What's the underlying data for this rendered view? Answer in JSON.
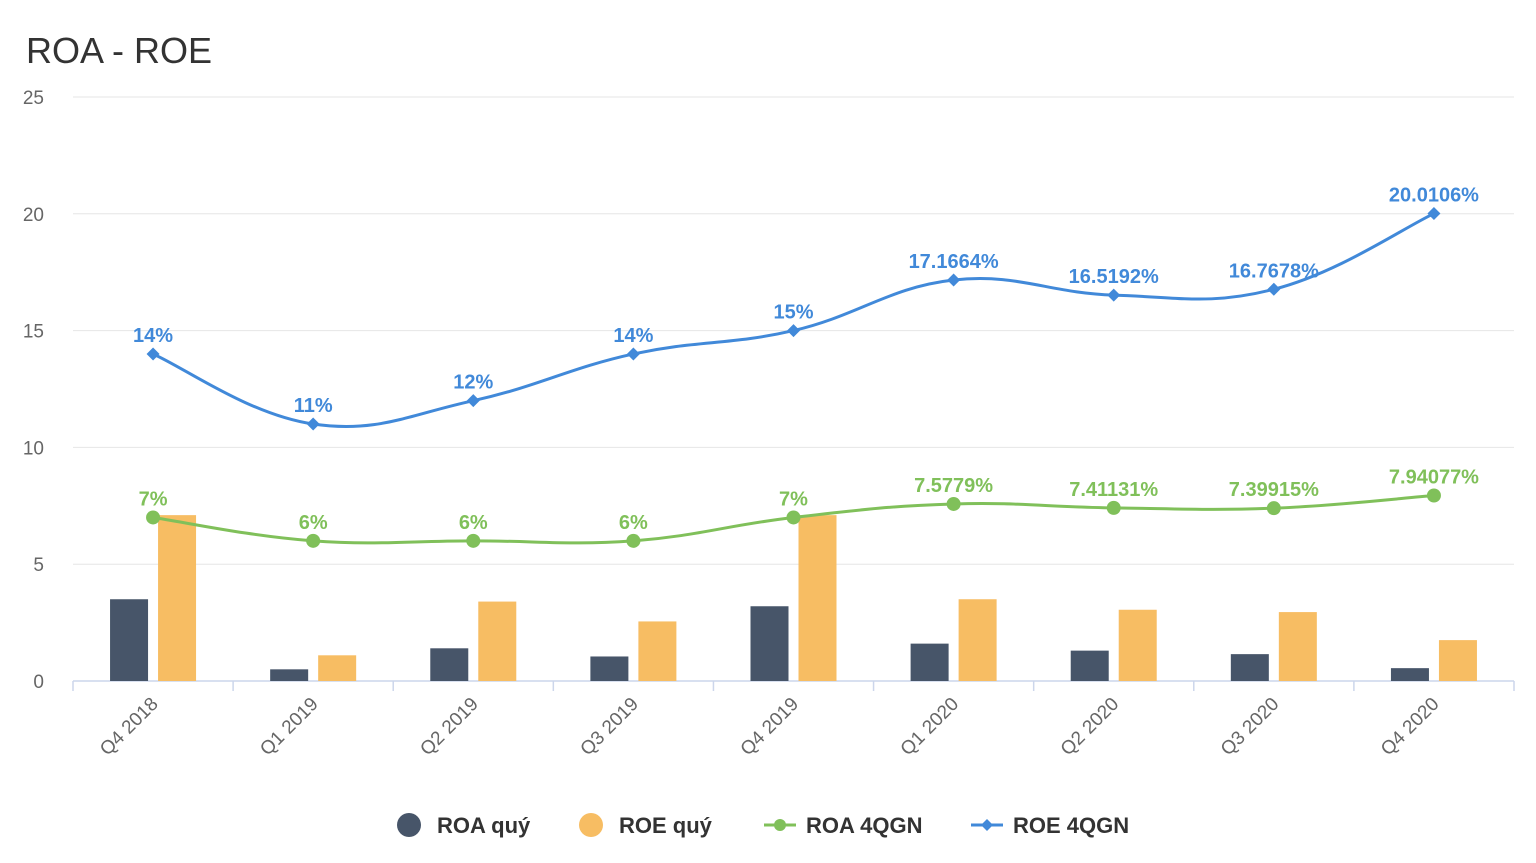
{
  "chart_data": {
    "type": "bar",
    "title": "ROA - ROE",
    "categories": [
      "Q4 2018",
      "Q1 2019",
      "Q2 2019",
      "Q3 2019",
      "Q4 2019",
      "Q1 2020",
      "Q2 2020",
      "Q3 2020",
      "Q4 2020"
    ],
    "ylim": [
      0,
      25
    ],
    "yticks": [
      "0",
      "5",
      "10",
      "15",
      "20",
      "25"
    ],
    "grid": true,
    "legend_position": "bottom",
    "series": [
      {
        "name": "ROA quý",
        "kind": "bar",
        "color": "#475569",
        "values": [
          3.5,
          0.5,
          1.4,
          1.05,
          3.2,
          1.6,
          1.3,
          1.15,
          0.55
        ]
      },
      {
        "name": "ROE quý",
        "kind": "bar",
        "color": "#f7bd63",
        "values": [
          7.1,
          1.1,
          3.4,
          2.55,
          7.1,
          3.5,
          3.05,
          2.95,
          1.75
        ]
      },
      {
        "name": "ROA 4QGN",
        "kind": "line",
        "marker": "circle",
        "color": "#80c05a",
        "values": [
          7,
          6,
          6,
          6,
          7,
          7.5779,
          7.41131,
          7.39915,
          7.94077
        ],
        "labels": [
          "7%",
          "6%",
          "6%",
          "6%",
          "7%",
          "7.5779%",
          "7.41131%",
          "7.39915%",
          "7.94077%"
        ]
      },
      {
        "name": "ROE 4QGN",
        "kind": "line",
        "marker": "diamond",
        "color": "#4189d9",
        "values": [
          14,
          11,
          12,
          14,
          15,
          17.1664,
          16.5192,
          16.7678,
          20.0106
        ],
        "labels": [
          "14%",
          "11%",
          "12%",
          "14%",
          "15%",
          "17.1664%",
          "16.5192%",
          "16.7678%",
          "20.0106%"
        ]
      }
    ]
  }
}
